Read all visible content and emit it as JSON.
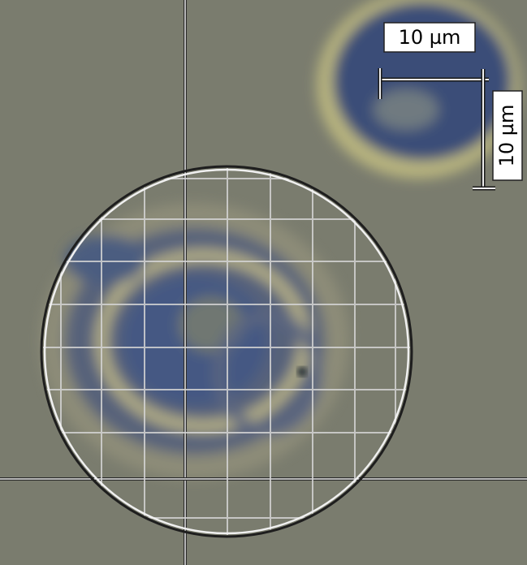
{
  "scale_bars": {
    "horizontal": {
      "label": "10 µm"
    },
    "vertical": {
      "label": "10 µm"
    }
  }
}
